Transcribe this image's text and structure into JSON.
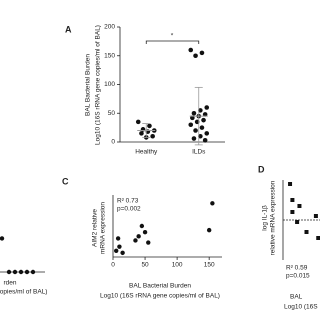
{
  "chart_data": [
    {
      "type": "dot",
      "panel": "A",
      "y_label": [
        "BAL Bacterial Burden",
        "Log10 (16S rRNA gene copies/ml of BAL)"
      ],
      "categories": [
        "Healthy",
        "ILDs"
      ],
      "values": [
        [
          35,
          28,
          22,
          20,
          18,
          15,
          10,
          8
        ],
        [
          160,
          155,
          150,
          60,
          55,
          50,
          48,
          45,
          42,
          38,
          35,
          30,
          25,
          20,
          15,
          10,
          6,
          3
        ]
      ],
      "mean": [
        20,
        45
      ],
      "sd": [
        12,
        50
      ],
      "annotation": "*",
      "ylim": [
        0,
        200
      ],
      "yticks": [
        0,
        50,
        100,
        150,
        200
      ],
      "color": "#111111"
    },
    {
      "type": "scatter",
      "x_label": [
        "rden",
        "copies/ml of BAL)"
      ],
      "x": [
        2,
        7,
        14,
        20,
        26,
        32,
        38
      ],
      "y": [
        0.8,
        0.8,
        0,
        0,
        0,
        0,
        0
      ],
      "xlim": [
        0,
        50
      ],
      "ylim": [
        0,
        1
      ],
      "marker": "circle",
      "color": "#111111"
    },
    {
      "type": "scatter",
      "panel": "C",
      "y_label": [
        "AIM2 relative",
        "mRNA expression"
      ],
      "x_label": [
        "BAL Bacterial Burden",
        "Log10 (16S rRNA gene copies/ml of BAL)"
      ],
      "annotation": [
        "R² 0.73",
        "p=0.002"
      ],
      "x": [
        5,
        8,
        10,
        15,
        35,
        40,
        45,
        50,
        55,
        150,
        155
      ],
      "y": [
        0.3,
        0.9,
        0.5,
        0.2,
        0.8,
        1.0,
        1.5,
        1.2,
        0.7,
        1.3,
        2.6
      ],
      "xlim": [
        0,
        170
      ],
      "ylim": [
        0,
        3
      ],
      "xticks": [
        0,
        50,
        100,
        150
      ],
      "marker": "circle",
      "color": "#111111"
    },
    {
      "type": "scatter",
      "panel": "D",
      "y_label": [
        "log IL-1β",
        "relative mRNA expression"
      ],
      "x_label": [
        "BAL",
        "Log10 (16S"
      ],
      "annotation": [
        "R² 0.59",
        "p=0.015"
      ],
      "x": [
        0.15,
        0.2,
        0.35,
        0.2,
        0.3,
        0.5,
        0.7,
        0.75
      ],
      "y": [
        0.9,
        0.5,
        0.35,
        0.2,
        -0.05,
        -0.3,
        0.1,
        -0.45
      ],
      "xlim": [
        0,
        1
      ],
      "ylim": [
        -1,
        1
      ],
      "marker": "square",
      "zero_line": true,
      "color": "#111111"
    }
  ]
}
